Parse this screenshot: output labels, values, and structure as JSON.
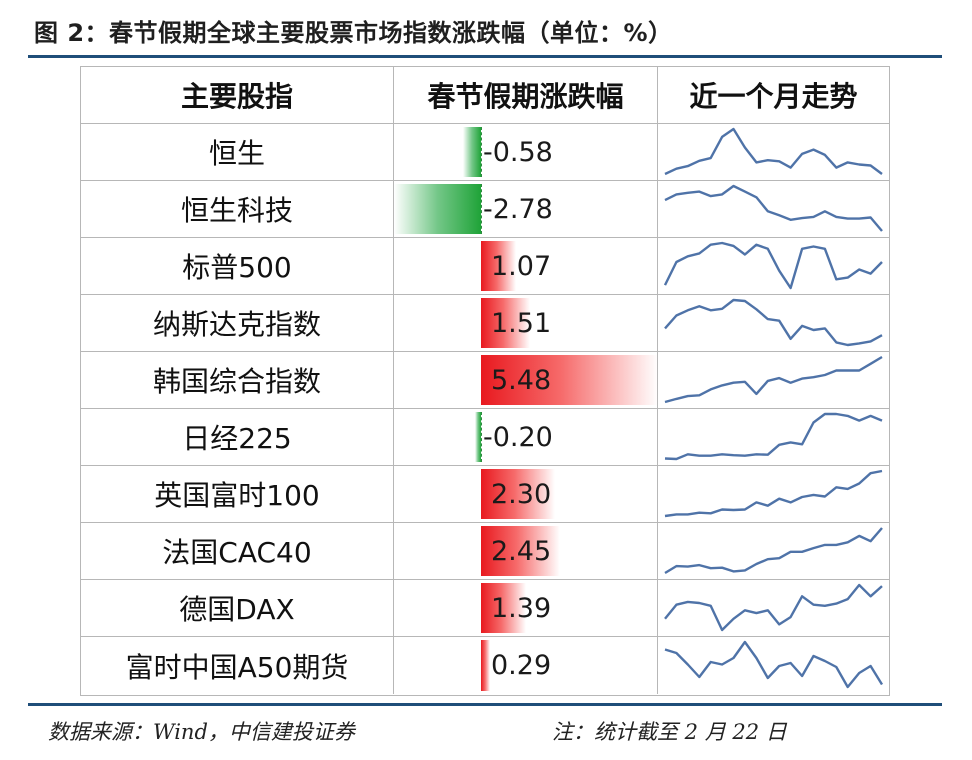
{
  "title": "图 2：春节假期全球主要股票市场指数涨跌幅（单位：%）",
  "colors": {
    "positive": "#e8191f",
    "negative": "#1fa338",
    "spark_line": "#4f73a8",
    "rule": "#1f4e79"
  },
  "table": {
    "headers": [
      "主要股指",
      "春节假期涨跌幅",
      "近一个月走势"
    ]
  },
  "chart_data": {
    "type": "table",
    "title": "图 2：春节假期全球主要股票市场指数涨跌幅（单位：%）",
    "columns": [
      "主要股指",
      "春节假期涨跌幅",
      "近一个月走势"
    ],
    "bar_range": [
      -2.78,
      5.48
    ],
    "rows": [
      {
        "name": "恒生",
        "change": -0.58,
        "label": "-0.58",
        "trend": [
          1,
          2,
          2.5,
          3.5,
          4,
          8,
          9.5,
          6,
          3.2,
          3.6,
          3.4,
          2.2,
          4.8,
          5.6,
          4.6,
          2.2,
          3.2,
          2.8,
          2.6,
          1
        ]
      },
      {
        "name": "恒生科技",
        "change": -2.78,
        "label": "-2.78",
        "trend": [
          6.5,
          7.5,
          7.8,
          8,
          7.2,
          7.5,
          9,
          8,
          7,
          4.5,
          3.8,
          3,
          3.3,
          3.5,
          4.5,
          3.5,
          3.2,
          3.2,
          3.4,
          1
        ]
      },
      {
        "name": "标普500",
        "change": 1.07,
        "label": "1.07",
        "trend": [
          2.5,
          6.5,
          7.5,
          8,
          9.5,
          9.8,
          9.3,
          7.8,
          9.5,
          8.8,
          5,
          2,
          8.8,
          9.2,
          8.8,
          3.5,
          3.8,
          5.2,
          4.5,
          6.5
        ]
      },
      {
        "name": "纳斯达克指数",
        "change": 1.51,
        "label": "1.51",
        "trend": [
          4.5,
          7,
          8,
          8.8,
          8,
          8.3,
          10,
          9.8,
          8.2,
          6.3,
          6,
          2.5,
          5,
          4.2,
          4.5,
          1.8,
          1.3,
          1.6,
          2,
          3.2
        ]
      },
      {
        "name": "韩国综合指数",
        "change": 5.48,
        "label": "5.48",
        "trend": [
          0.5,
          1.2,
          1.8,
          2,
          3.3,
          4.2,
          4.8,
          5,
          2.3,
          5.2,
          5.8,
          4.8,
          5.7,
          6,
          6.5,
          7.5,
          7.5,
          7.5,
          9,
          10.5
        ]
      },
      {
        "name": "日经225",
        "change": -0.2,
        "label": "-0.20",
        "trend": [
          0.6,
          0.5,
          1.5,
          1.2,
          1.2,
          1.5,
          1.3,
          1.2,
          1.5,
          1.4,
          3.5,
          4,
          3.6,
          8.2,
          10,
          10,
          9.6,
          8.6,
          9.6,
          8.6
        ]
      },
      {
        "name": "英国富时100",
        "change": 2.3,
        "label": "2.30",
        "trend": [
          0.3,
          0.6,
          0.6,
          0.9,
          0.8,
          1.5,
          1.4,
          1.5,
          2.8,
          2.2,
          3.5,
          2.8,
          3.8,
          4.2,
          3.9,
          5.6,
          5.3,
          6.3,
          8.2,
          8.6
        ]
      },
      {
        "name": "法国CAC40",
        "change": 2.45,
        "label": "2.45",
        "trend": [
          0.5,
          1.8,
          1.7,
          2,
          1.4,
          1.5,
          0.8,
          1,
          2.2,
          3.1,
          3.3,
          4.5,
          4.5,
          5.2,
          5.8,
          5.8,
          6.3,
          7.5,
          6.5,
          9
        ]
      },
      {
        "name": "德国DAX",
        "change": 1.39,
        "label": "1.39",
        "trend": [
          3.5,
          6,
          6.5,
          6.3,
          5.8,
          1.5,
          3.5,
          5,
          4.5,
          5,
          2.5,
          3.8,
          7.5,
          6,
          5.8,
          6.2,
          7,
          9.5,
          7.5,
          9.3
        ]
      },
      {
        "name": "富时中国A50期货",
        "change": 0.29,
        "label": "0.29",
        "trend": [
          8.5,
          7.8,
          5.5,
          3,
          6,
          5.5,
          6.8,
          10,
          6.8,
          2.8,
          5.2,
          5.8,
          3.2,
          7.2,
          6.2,
          5,
          1,
          3.8,
          5.2,
          1.5
        ]
      }
    ]
  },
  "footer": {
    "source": "数据来源：Wind，中信建投证券",
    "note": "注：统计截至 2 月 22 日"
  }
}
